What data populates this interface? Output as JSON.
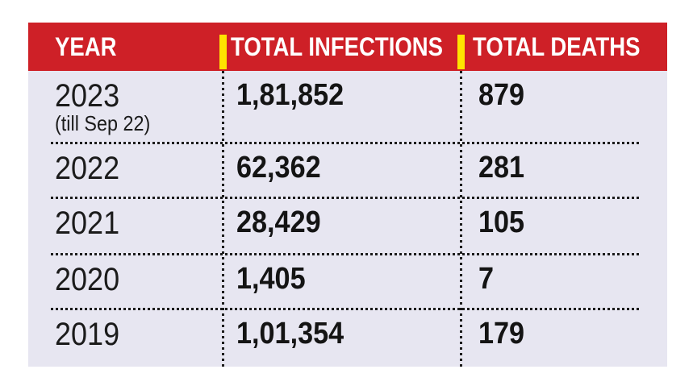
{
  "colors": {
    "header_bg": "#CE2027",
    "divider_yellow": "#FFE400",
    "body_bg": "#E7E6F1",
    "text": "#1B1B1B",
    "header_text": "#FFFFFF"
  },
  "table": {
    "columns": [
      {
        "label": "YEAR"
      },
      {
        "label": "TOTAL INFECTIONS"
      },
      {
        "label": "TOTAL DEATHS"
      }
    ],
    "rows": [
      {
        "year": "2023",
        "year_note": "(till Sep 22)",
        "infections": "1,81,852",
        "deaths": "879"
      },
      {
        "year": "2022",
        "infections": "62,362",
        "deaths": "281"
      },
      {
        "year": "2021",
        "infections": "28,429",
        "deaths": "105"
      },
      {
        "year": "2020",
        "infections": "1,405",
        "deaths": "7"
      },
      {
        "year": "2019",
        "infections": "1,01,354",
        "deaths": "179"
      }
    ]
  },
  "chart_data": {
    "type": "table",
    "columns": [
      "YEAR",
      "TOTAL INFECTIONS",
      "TOTAL DEATHS"
    ],
    "categories": [
      "2023 (till Sep 22)",
      "2022",
      "2021",
      "2020",
      "2019"
    ],
    "rows": [
      [
        "2023 (till Sep 22)",
        "1,81,852",
        "879"
      ],
      [
        "2022",
        "62,362",
        "281"
      ],
      [
        "2021",
        "28,429",
        "105"
      ],
      [
        "2020",
        "1,405",
        "7"
      ],
      [
        "2019",
        "1,01,354",
        "179"
      ]
    ],
    "series": [
      {
        "name": "TOTAL INFECTIONS",
        "values": [
          181852,
          62362,
          28429,
          1405,
          101354
        ]
      },
      {
        "name": "TOTAL DEATHS",
        "values": [
          879,
          281,
          105,
          7,
          179
        ]
      }
    ]
  }
}
